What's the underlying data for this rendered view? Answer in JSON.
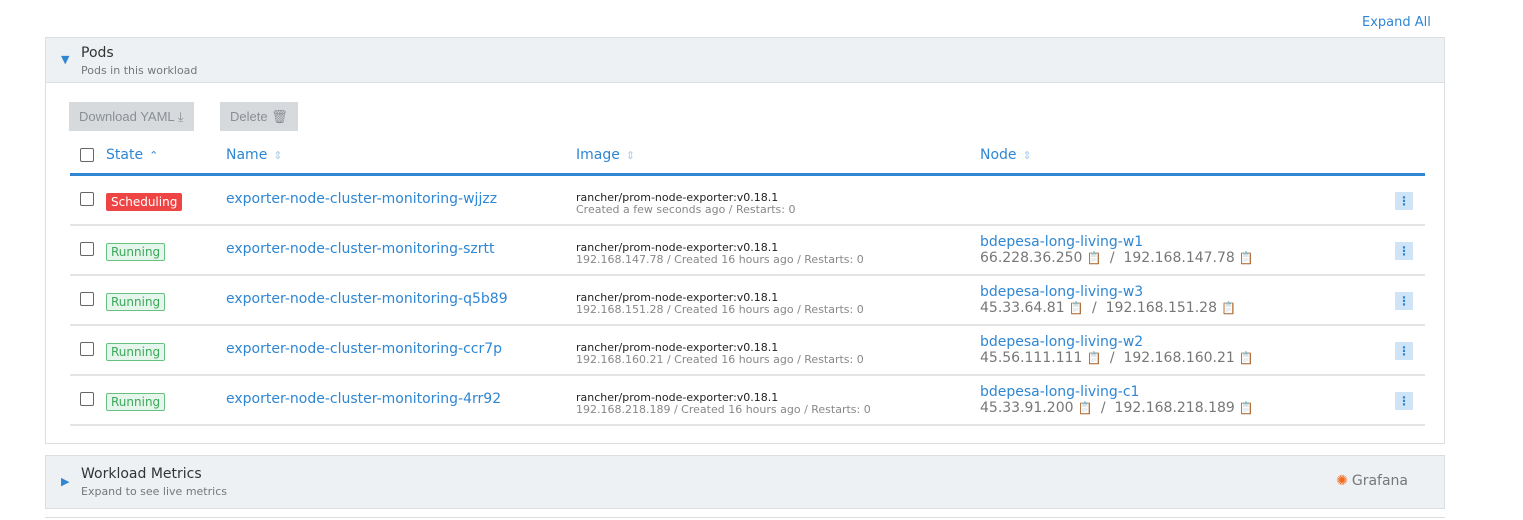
{
  "expand_all": "Expand All",
  "pods": {
    "title": "Pods",
    "subtitle": "Pods in this workload",
    "download_yaml": "Download YAML",
    "delete": "Delete",
    "columns": {
      "state": "State",
      "name": "Name",
      "image": "Image",
      "node": "Node"
    },
    "rows": [
      {
        "state": "Scheduling",
        "name": "exporter-node-cluster-monitoring-wjjzz",
        "image": "rancher/prom-node-exporter:v0.18.1",
        "detail": "Created a few seconds ago / Restarts: 0",
        "node": "",
        "ip_public": "",
        "ip_private": ""
      },
      {
        "state": "Running",
        "name": "exporter-node-cluster-monitoring-szrtt",
        "image": "rancher/prom-node-exporter:v0.18.1",
        "detail": "192.168.147.78 / Created 16 hours ago / Restarts: 0",
        "node": "bdepesa-long-living-w1",
        "ip_public": "66.228.36.250",
        "ip_private": "192.168.147.78"
      },
      {
        "state": "Running",
        "name": "exporter-node-cluster-monitoring-q5b89",
        "image": "rancher/prom-node-exporter:v0.18.1",
        "detail": "192.168.151.28 / Created 16 hours ago / Restarts: 0",
        "node": "bdepesa-long-living-w3",
        "ip_public": "45.33.64.81",
        "ip_private": "192.168.151.28"
      },
      {
        "state": "Running",
        "name": "exporter-node-cluster-monitoring-ccr7p",
        "image": "rancher/prom-node-exporter:v0.18.1",
        "detail": "192.168.160.21 / Created 16 hours ago / Restarts: 0",
        "node": "bdepesa-long-living-w2",
        "ip_public": "45.56.111.111",
        "ip_private": "192.168.160.21"
      },
      {
        "state": "Running",
        "name": "exporter-node-cluster-monitoring-4rr92",
        "image": "rancher/prom-node-exporter:v0.18.1",
        "detail": "192.168.218.189 / Created 16 hours ago / Restarts: 0",
        "node": "bdepesa-long-living-c1",
        "ip_public": "45.33.91.200",
        "ip_private": "192.168.218.189"
      }
    ]
  },
  "metrics": {
    "title": "Workload Metrics",
    "subtitle": "Expand to see live metrics",
    "grafana": "Grafana"
  },
  "colors": {
    "accent": "#2f86d3",
    "scheduling": "#ef4444",
    "running": "#3aa85a"
  }
}
